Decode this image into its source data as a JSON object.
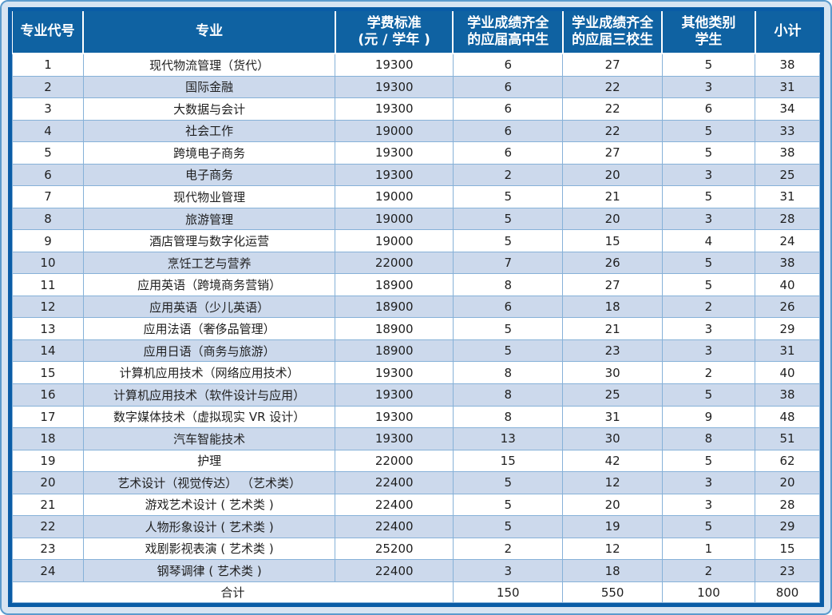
{
  "table": {
    "headers": {
      "code": "专业代号",
      "major": "专业",
      "tuition_line1": "学费标准",
      "tuition_line2": "(元 / 学年 )",
      "hs_line1": "学业成绩齐全",
      "hs_line2": "的应届高中生",
      "sx_line1": "学业成绩齐全",
      "sx_line2": "的应届三校生",
      "other_line1": "其他类别",
      "other_line2": "学生",
      "subtotal": "小计"
    },
    "rows": [
      [
        "1",
        "现代物流管理（货代）",
        "19300",
        "6",
        "27",
        "5",
        "38"
      ],
      [
        "2",
        "国际金融",
        "19300",
        "6",
        "22",
        "3",
        "31"
      ],
      [
        "3",
        "大数据与会计",
        "19300",
        "6",
        "22",
        "6",
        "34"
      ],
      [
        "4",
        "社会工作",
        "19000",
        "6",
        "22",
        "5",
        "33"
      ],
      [
        "5",
        "跨境电子商务",
        "19300",
        "6",
        "27",
        "5",
        "38"
      ],
      [
        "6",
        "电子商务",
        "19300",
        "2",
        "20",
        "3",
        "25"
      ],
      [
        "7",
        "现代物业管理",
        "19000",
        "5",
        "21",
        "5",
        "31"
      ],
      [
        "8",
        "旅游管理",
        "19000",
        "5",
        "20",
        "3",
        "28"
      ],
      [
        "9",
        "酒店管理与数字化运营",
        "19000",
        "5",
        "15",
        "4",
        "24"
      ],
      [
        "10",
        "烹饪工艺与营养",
        "22000",
        "7",
        "26",
        "5",
        "38"
      ],
      [
        "11",
        "应用英语（跨境商务营销）",
        "18900",
        "8",
        "27",
        "5",
        "40"
      ],
      [
        "12",
        "应用英语（少儿英语）",
        "18900",
        "6",
        "18",
        "2",
        "26"
      ],
      [
        "13",
        "应用法语（奢侈品管理）",
        "18900",
        "5",
        "21",
        "3",
        "29"
      ],
      [
        "14",
        "应用日语（商务与旅游）",
        "18900",
        "5",
        "23",
        "3",
        "31"
      ],
      [
        "15",
        "计算机应用技术（网络应用技术）",
        "19300",
        "8",
        "30",
        "2",
        "40"
      ],
      [
        "16",
        "计算机应用技术（软件设计与应用）",
        "19300",
        "8",
        "25",
        "5",
        "38"
      ],
      [
        "17",
        "数字媒体技术（虚拟现实 VR 设计）",
        "19300",
        "8",
        "31",
        "9",
        "48"
      ],
      [
        "18",
        "汽车智能技术",
        "19300",
        "13",
        "30",
        "8",
        "51"
      ],
      [
        "19",
        "护理",
        "22000",
        "15",
        "42",
        "5",
        "62"
      ],
      [
        "20",
        "艺术设计（视觉传达） （艺术类）",
        "22400",
        "5",
        "12",
        "3",
        "20"
      ],
      [
        "21",
        "游戏艺术设计 ( 艺术类 )",
        "22400",
        "5",
        "20",
        "3",
        "28"
      ],
      [
        "22",
        "人物形象设计 ( 艺术类 )",
        "22400",
        "5",
        "19",
        "5",
        "29"
      ],
      [
        "23",
        "戏剧影视表演 ( 艺术类 )",
        "25200",
        "2",
        "12",
        "1",
        "15"
      ],
      [
        "24",
        "钢琴调律 ( 艺术类 )",
        "22400",
        "3",
        "18",
        "2",
        "23"
      ]
    ],
    "total": {
      "label": "合计",
      "values": [
        "150",
        "550",
        "100",
        "800"
      ]
    }
  },
  "colors": {
    "header_bg": "#0f62a2",
    "stripe_bg": "#ccd9ec",
    "grid_line": "#86b1d8",
    "outer_border": "#0a5ca6",
    "page_bg": "#d7e4f2"
  }
}
